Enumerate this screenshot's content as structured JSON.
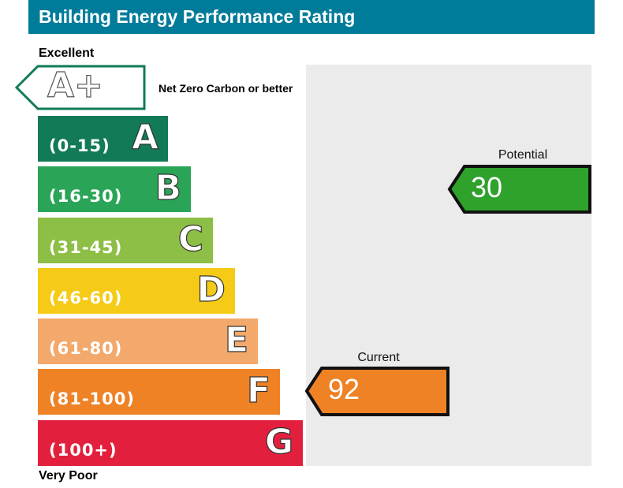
{
  "title": "Building Energy Performance Rating",
  "top_label": "Excellent",
  "bottom_label": "Very Poor",
  "aplus": {
    "letter": "A+",
    "note": "Net Zero Carbon or better",
    "color": "#127a57"
  },
  "chart_data": {
    "type": "rating-bands",
    "bands": [
      {
        "letter": "A",
        "range": "(0-15)",
        "color": "#127a57"
      },
      {
        "letter": "B",
        "range": "(16-30)",
        "color": "#2aa457"
      },
      {
        "letter": "C",
        "range": "(31-45)",
        "color": "#8dbe45"
      },
      {
        "letter": "D",
        "range": "(46-60)",
        "color": "#f6cb17"
      },
      {
        "letter": "E",
        "range": "(61-80)",
        "color": "#f2a96b"
      },
      {
        "letter": "F",
        "range": "(81-100)",
        "color": "#ee8225"
      },
      {
        "letter": "G",
        "range": "(100+)",
        "color": "#e2203d"
      }
    ],
    "potential": {
      "label": "Potential",
      "value": "30",
      "color": "#2ea22b"
    },
    "current": {
      "label": "Current",
      "value": "92",
      "color": "#ee8225"
    }
  }
}
